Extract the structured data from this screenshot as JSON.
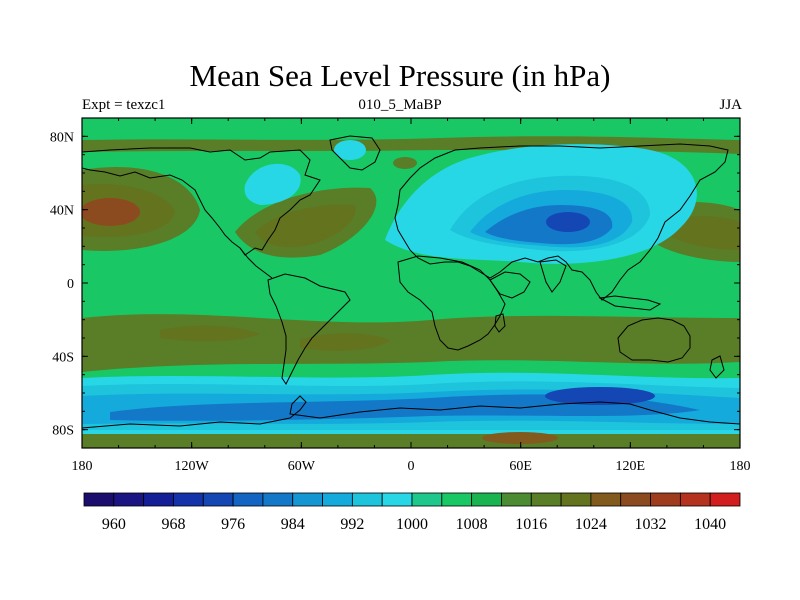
{
  "title": "Mean Sea Level Pressure (in hPa)",
  "subtitle_left": "Expt = texzc1",
  "subtitle_center": "010_5_MaBP",
  "subtitle_right": "JJA",
  "chart_data": {
    "type": "contour-map",
    "variable": "Mean Sea Level Pressure",
    "units": "hPa",
    "experiment": "texzc1",
    "period": "010_5_MaBP",
    "season": "JJA",
    "xlim": [
      -180,
      180
    ],
    "ylim": [
      -90,
      90
    ],
    "x_ticks": [
      {
        "value": -180,
        "label": "180"
      },
      {
        "value": -120,
        "label": "120W"
      },
      {
        "value": -60,
        "label": "60W"
      },
      {
        "value": 0,
        "label": "0"
      },
      {
        "value": 60,
        "label": "60E"
      },
      {
        "value": 120,
        "label": "120E"
      },
      {
        "value": 180,
        "label": "180"
      }
    ],
    "y_ticks": [
      {
        "value": 80,
        "label": "80N"
      },
      {
        "value": 40,
        "label": "40N"
      },
      {
        "value": 0,
        "label": "0"
      },
      {
        "value": -40,
        "label": "40S"
      },
      {
        "value": -80,
        "label": "80S"
      }
    ],
    "colorbar_levels": [
      956,
      960,
      964,
      968,
      972,
      976,
      980,
      984,
      988,
      992,
      996,
      1000,
      1004,
      1008,
      1012,
      1016,
      1020,
      1024,
      1028,
      1032,
      1036,
      1040,
      1044
    ],
    "colorbar_labels": [
      {
        "value": 960,
        "label": "960"
      },
      {
        "value": 968,
        "label": "968"
      },
      {
        "value": 976,
        "label": "976"
      },
      {
        "value": 984,
        "label": "984"
      },
      {
        "value": 992,
        "label": "992"
      },
      {
        "value": 1000,
        "label": "1000"
      },
      {
        "value": 1008,
        "label": "1008"
      },
      {
        "value": 1016,
        "label": "1016"
      },
      {
        "value": 1024,
        "label": "1024"
      },
      {
        "value": 1032,
        "label": "1032"
      },
      {
        "value": 1040,
        "label": "1040"
      }
    ],
    "colors": [
      "#1a0d6e",
      "#1a1582",
      "#141e96",
      "#1432aa",
      "#1446b4",
      "#1464c3",
      "#1478c8",
      "#1496d2",
      "#14aadc",
      "#1ec3dc",
      "#28d7e6",
      "#1ec88c",
      "#19c864",
      "#19b450",
      "#4b8c32",
      "#5a7d28",
      "#64731e",
      "#825a1e",
      "#8c4b1e",
      "#a03c1e",
      "#b4321e",
      "#d21e1e"
    ],
    "background_level": 1010,
    "features": [
      {
        "name": "Southern Ocean trough",
        "lon": [
          -140,
          170
        ],
        "lat": [
          -70,
          -55
        ],
        "level": 986
      },
      {
        "name": "Asian monsoon low",
        "lon": [
          40,
          130
        ],
        "lat": [
          25,
          60
        ],
        "level": 996
      },
      {
        "name": "North Pacific high",
        "lon": [
          -180,
          -140
        ],
        "lat": [
          25,
          55
        ],
        "level": 1022
      },
      {
        "name": "Azores high",
        "lon": [
          -60,
          -20
        ],
        "lat": [
          25,
          50
        ],
        "level": 1020
      },
      {
        "name": "Southern subtropical high belt",
        "lon": [
          -180,
          180
        ],
        "lat": [
          -45,
          -15
        ],
        "level": 1018
      }
    ]
  }
}
